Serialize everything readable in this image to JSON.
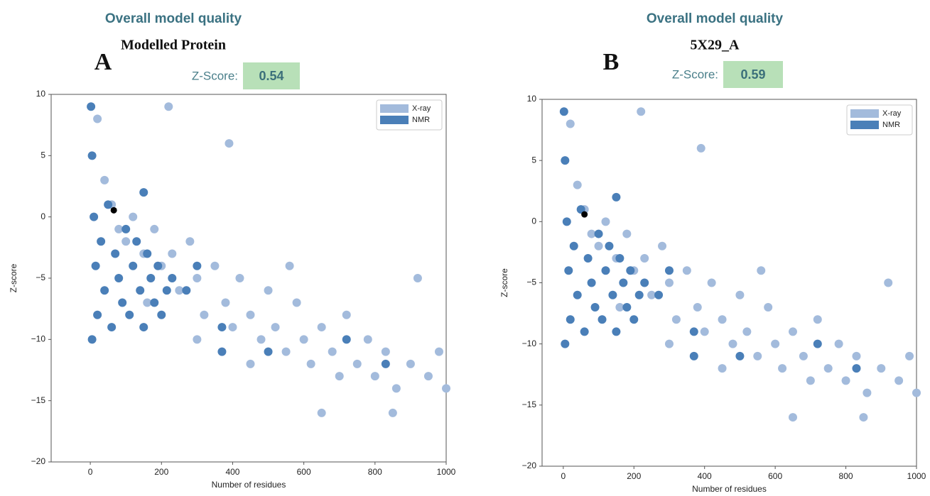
{
  "chart_data": [
    {
      "type": "scatter",
      "panel": "A",
      "title": "Overall model quality",
      "subtitle": "Modelled Protein",
      "zscore_label": "Z-Score:",
      "zscore": 0.54,
      "xlabel": "Number of residues",
      "ylabel": "Z-score",
      "xlim": [
        -110,
        1000
      ],
      "ylim": [
        -20,
        10
      ],
      "xticks": [
        0,
        200,
        400,
        600,
        800,
        1000
      ],
      "yticks": [
        {
          "value": -20,
          "label": "−20"
        },
        {
          "value": -15,
          "label": "−15"
        },
        {
          "value": -10,
          "label": "−10"
        },
        {
          "value": -5,
          "label": "−5"
        },
        0,
        5,
        10
      ],
      "legend": "upper right",
      "series": [
        {
          "name": "X-ray",
          "color": "#a3bbdc",
          "x": [
            20,
            40,
            60,
            80,
            100,
            120,
            150,
            180,
            200,
            230,
            250,
            280,
            300,
            320,
            350,
            380,
            400,
            420,
            450,
            480,
            500,
            520,
            550,
            580,
            600,
            620,
            650,
            680,
            700,
            720,
            750,
            780,
            800,
            830,
            860,
            900,
            920,
            950,
            980,
            1000,
            390,
            220,
            650,
            850,
            300,
            450,
            560,
            160
          ],
          "values": [
            8,
            3,
            1,
            -1,
            -2,
            0,
            -3,
            -1,
            -4,
            -3,
            -6,
            -2,
            -5,
            -8,
            -4,
            -7,
            -9,
            -5,
            -8,
            -10,
            -6,
            -9,
            -11,
            -7,
            -10,
            -12,
            -9,
            -11,
            -13,
            -8,
            -12,
            -10,
            -13,
            -11,
            -14,
            -12,
            -5,
            -13,
            -11,
            -14,
            6,
            9,
            -16,
            -16,
            -10,
            -12,
            -4,
            -7
          ]
        },
        {
          "name": "NMR",
          "color": "#4a7fb8",
          "x": [
            2,
            5,
            10,
            15,
            20,
            30,
            40,
            50,
            60,
            70,
            80,
            90,
            100,
            110,
            120,
            130,
            140,
            150,
            160,
            170,
            180,
            190,
            200,
            215,
            230,
            270,
            300,
            370,
            370,
            500,
            720,
            830,
            5,
            150
          ],
          "values": [
            9,
            5,
            0,
            -4,
            -8,
            -2,
            -6,
            1,
            -9,
            -3,
            -5,
            -7,
            -1,
            -8,
            -4,
            -2,
            -6,
            -9,
            -3,
            -5,
            -7,
            -4,
            -8,
            -6,
            -5,
            -6,
            -4,
            -9,
            -11,
            -11,
            -10,
            -12,
            -10,
            2
          ]
        }
      ],
      "model_point": {
        "x": 66,
        "y": 0.54,
        "color": "#000000"
      }
    },
    {
      "type": "scatter",
      "panel": "B",
      "title": "Overall model quality",
      "subtitle": "5X29_A",
      "zscore_label": "Z-Score:",
      "zscore": 0.59,
      "xlabel": "Number of residues",
      "ylabel": "Z-score",
      "xlim": [
        -60,
        1000
      ],
      "ylim": [
        -20,
        10
      ],
      "xticks": [
        0,
        200,
        400,
        600,
        800,
        1000
      ],
      "yticks": [
        {
          "value": -20,
          "label": "−20"
        },
        {
          "value": -15,
          "label": "−15"
        },
        {
          "value": -10,
          "label": "−10"
        },
        {
          "value": -5,
          "label": "−5"
        },
        0,
        5,
        10
      ],
      "legend": "upper right",
      "series": [
        {
          "name": "X-ray",
          "color": "#a3bbdc",
          "x": [
            20,
            40,
            60,
            80,
            100,
            120,
            150,
            180,
            200,
            230,
            250,
            280,
            300,
            320,
            350,
            380,
            400,
            420,
            450,
            480,
            500,
            520,
            550,
            580,
            600,
            620,
            650,
            680,
            700,
            720,
            750,
            780,
            800,
            830,
            860,
            900,
            920,
            950,
            980,
            1000,
            390,
            220,
            650,
            850,
            300,
            450,
            560,
            160
          ],
          "values": [
            8,
            3,
            1,
            -1,
            -2,
            0,
            -3,
            -1,
            -4,
            -3,
            -6,
            -2,
            -5,
            -8,
            -4,
            -7,
            -9,
            -5,
            -8,
            -10,
            -6,
            -9,
            -11,
            -7,
            -10,
            -12,
            -9,
            -11,
            -13,
            -8,
            -12,
            -10,
            -13,
            -11,
            -14,
            -12,
            -5,
            -13,
            -11,
            -14,
            6,
            9,
            -16,
            -16,
            -10,
            -12,
            -4,
            -7
          ]
        },
        {
          "name": "NMR",
          "color": "#4a7fb8",
          "x": [
            2,
            5,
            10,
            15,
            20,
            30,
            40,
            50,
            60,
            70,
            80,
            90,
            100,
            110,
            120,
            130,
            140,
            150,
            160,
            170,
            180,
            190,
            200,
            215,
            230,
            270,
            300,
            370,
            370,
            500,
            720,
            830,
            5,
            150
          ],
          "values": [
            9,
            5,
            0,
            -4,
            -8,
            -2,
            -6,
            1,
            -9,
            -3,
            -5,
            -7,
            -1,
            -8,
            -4,
            -2,
            -6,
            -9,
            -3,
            -5,
            -7,
            -4,
            -8,
            -6,
            -5,
            -6,
            -4,
            -9,
            -11,
            -11,
            -10,
            -12,
            -10,
            2
          ]
        }
      ],
      "model_point": {
        "x": 60,
        "y": 0.59,
        "color": "#000000"
      }
    }
  ]
}
